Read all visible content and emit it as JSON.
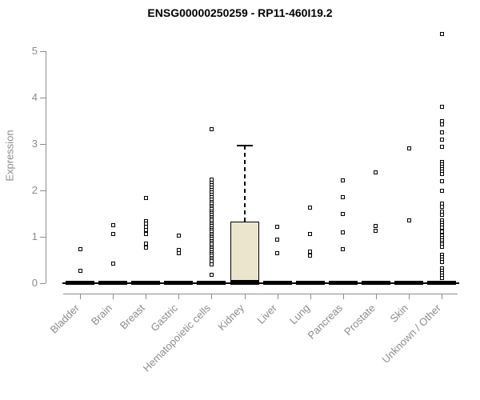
{
  "chart_data": {
    "type": "boxplot",
    "title": "ENSG00000250259 - RP11-460I19.2",
    "ylabel": "Expression",
    "ylim": [
      0,
      5.5
    ],
    "yticks": [
      0,
      1,
      2,
      3,
      4,
      5
    ],
    "grid": false,
    "legend": "none",
    "categories": [
      "Bladder",
      "Brain",
      "Breast",
      "Gastric",
      "Hematopoietic cells",
      "Kidney",
      "Liver",
      "Lung",
      "Pancreas",
      "Prostate",
      "Skin",
      "Unknown / Other"
    ],
    "boxes": [
      {
        "category": "Bladder",
        "q1": 0,
        "median": 0,
        "q3": 0,
        "whisker_low": 0,
        "whisker_high": 0,
        "points": [
          0.73,
          0.26
        ]
      },
      {
        "category": "Brain",
        "q1": 0,
        "median": 0,
        "q3": 0,
        "whisker_low": 0,
        "whisker_high": 0,
        "points": [
          1.25,
          1.06,
          0.42
        ]
      },
      {
        "category": "Breast",
        "q1": 0,
        "median": 0,
        "q3": 0,
        "whisker_low": 0,
        "whisker_high": 0,
        "points": [
          1.83,
          1.33,
          1.27,
          1.21,
          1.14,
          1.05,
          0.84,
          0.76
        ]
      },
      {
        "category": "Gastric",
        "q1": 0,
        "median": 0,
        "q3": 0,
        "whisker_low": 0,
        "whisker_high": 0,
        "points": [
          1.02,
          0.71,
          0.64
        ]
      },
      {
        "category": "Hematopoietic cells",
        "q1": 0,
        "median": 0,
        "q3": 0,
        "whisker_low": 0,
        "whisker_high": 0,
        "points": [
          3.31,
          2.22,
          2.16,
          2.1,
          2.05,
          2.0,
          1.95,
          1.9,
          1.85,
          1.8,
          1.75,
          1.7,
          1.66,
          1.62,
          1.58,
          1.54,
          1.5,
          1.46,
          1.42,
          1.38,
          1.34,
          1.3,
          1.26,
          1.22,
          1.18,
          1.14,
          1.1,
          1.06,
          1.02,
          0.98,
          0.94,
          0.9,
          0.86,
          0.82,
          0.78,
          0.74,
          0.7,
          0.66,
          0.62,
          0.58,
          0.54,
          0.5,
          0.46,
          0.4,
          0.18
        ]
      },
      {
        "category": "Kidney",
        "q1": 0,
        "median": 0,
        "q3": 1.32,
        "whisker_low": 0,
        "whisker_high": 2.96,
        "points": []
      },
      {
        "category": "Liver",
        "q1": 0,
        "median": 0,
        "q3": 0,
        "whisker_low": 0,
        "whisker_high": 0,
        "points": [
          1.2,
          0.93,
          0.63
        ]
      },
      {
        "category": "Lung",
        "q1": 0,
        "median": 0,
        "q3": 0,
        "whisker_low": 0,
        "whisker_high": 0,
        "points": [
          1.62,
          1.06,
          0.67,
          0.58
        ]
      },
      {
        "category": "Pancreas",
        "q1": 0,
        "median": 0,
        "q3": 0,
        "whisker_low": 0,
        "whisker_high": 0,
        "points": [
          2.21,
          1.84,
          1.49,
          1.09,
          0.72
        ]
      },
      {
        "category": "Prostate",
        "q1": 0,
        "median": 0,
        "q3": 0,
        "whisker_low": 0,
        "whisker_high": 0,
        "points": [
          2.38,
          1.22,
          1.12
        ]
      },
      {
        "category": "Skin",
        "q1": 0,
        "median": 0,
        "q3": 0,
        "whisker_low": 0,
        "whisker_high": 0,
        "points": [
          2.9,
          1.34
        ]
      },
      {
        "category": "Unknown / Other",
        "q1": 0,
        "median": 0,
        "q3": 0,
        "whisker_low": 0,
        "whisker_high": 0,
        "points": [
          5.36,
          3.79,
          3.48,
          3.42,
          3.24,
          3.08,
          2.93,
          2.6,
          2.55,
          2.5,
          2.45,
          2.4,
          2.34,
          2.19,
          1.99,
          1.71,
          1.64,
          1.53,
          1.47,
          1.34,
          1.29,
          1.24,
          1.19,
          1.1,
          1.02,
          0.97,
          0.92,
          0.87,
          0.82,
          0.78,
          0.6,
          0.55,
          0.5,
          0.45,
          0.31,
          0.26,
          0.21,
          0.16,
          0.1
        ]
      }
    ],
    "colors": {
      "background": "#ffffff",
      "title": "#000000",
      "axis": "#8c8c8c",
      "tick_label": "#8c8c8c",
      "box_fill": "#ece5cd",
      "box_border": "#000000",
      "median": "#000000",
      "point": "#000000"
    }
  }
}
